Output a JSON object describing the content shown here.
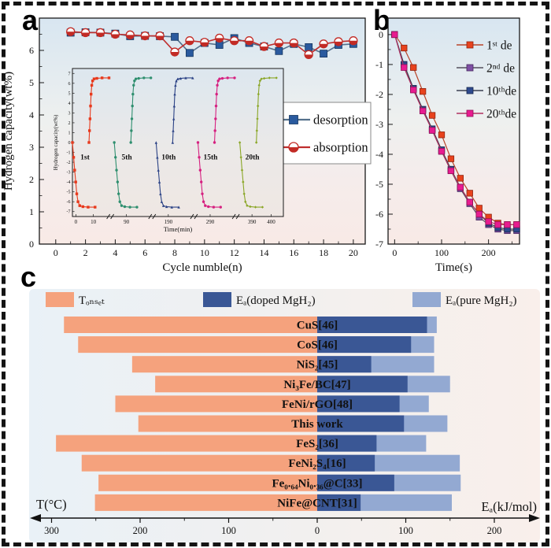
{
  "figure": {
    "panel_labels": {
      "a": "a",
      "b": "b",
      "c": "c"
    }
  },
  "chart_data": [
    {
      "id": "cycling",
      "type": "line",
      "panel": "a",
      "xlabel": "Cycle numble(n)",
      "ylabel": "Hydrogen capacity(wt%)",
      "xlim": [
        -1.1,
        20.8
      ],
      "ylim": [
        0,
        7
      ],
      "xticks": [
        0,
        2,
        4,
        6,
        8,
        10,
        12,
        14,
        16,
        18,
        20
      ],
      "yticks": [
        0,
        1,
        2,
        3,
        4,
        5,
        6,
        7
      ],
      "legend_position": "right-middle",
      "x": [
        1,
        2,
        3,
        4,
        5,
        6,
        7,
        8,
        9,
        10,
        11,
        12,
        13,
        14,
        15,
        16,
        17,
        18,
        19,
        20
      ],
      "series": [
        {
          "name": "desorption",
          "marker": "square",
          "color": "#2a5a9e",
          "edge": "#16365f",
          "line_color": "#54708c",
          "values": [
            6.55,
            6.56,
            6.55,
            6.52,
            6.44,
            6.45,
            6.44,
            6.42,
            5.92,
            6.23,
            6.17,
            6.38,
            6.23,
            6.12,
            5.98,
            6.2,
            6.1,
            5.9,
            6.17,
            6.2
          ]
        },
        {
          "name": "absorption",
          "marker": "half-circle",
          "color": "#c22b25",
          "edge": "#8f1d18",
          "line_color": "#bf2e2e",
          "values": [
            6.58,
            6.55,
            6.55,
            6.5,
            6.48,
            6.45,
            6.45,
            5.95,
            6.3,
            6.25,
            6.38,
            6.3,
            6.3,
            6.12,
            6.23,
            6.23,
            5.87,
            6.2,
            6.27,
            6.3
          ]
        }
      ]
    },
    {
      "id": "inset_kinetics",
      "type": "line-broken-axis",
      "panel": "a-inset",
      "xlabel": "Time(min)",
      "ylabel": "Hydrogen capacity(wt%)",
      "yticks": [
        7,
        6,
        5,
        4,
        3,
        2,
        1,
        0,
        -1,
        -2,
        -3,
        -4,
        -5,
        -6,
        -7
      ],
      "xticks": [
        {
          "label": "0",
          "du": 2
        },
        {
          "label": "10",
          "du": 12
        },
        {
          "label": "90",
          "du": 31
        },
        {
          "label": "190",
          "du": 55
        },
        {
          "label": "290",
          "du": 79
        },
        {
          "label": "390",
          "du": 103
        },
        {
          "label": "400",
          "du": 114
        }
      ],
      "breaks_du": [
        21.5,
        45.5,
        69.5,
        93.5
      ],
      "group_offsets": [
        0,
        24,
        48,
        72,
        96
      ],
      "groups": [
        {
          "label": "1st",
          "color": "#e8391c",
          "marker": "square"
        },
        {
          "label": "5th",
          "color": "#2f8f6f",
          "marker": "circle"
        },
        {
          "label": "10th",
          "color": "#2c4386",
          "marker": "triangle"
        },
        {
          "label": "15th",
          "color": "#d62180",
          "marker": "circle"
        },
        {
          "label": "20th",
          "color": "#8aa626",
          "marker": "diamond"
        }
      ],
      "desorption_shape": [
        [
          0,
          0
        ],
        [
          0.7,
          -1.5
        ],
        [
          1.3,
          -2.8
        ],
        [
          1.9,
          -4.0
        ],
        [
          2.5,
          -5.2
        ],
        [
          3.2,
          -6.0
        ],
        [
          4.2,
          -6.4
        ],
        [
          6,
          -6.5
        ],
        [
          9,
          -6.55
        ],
        [
          13,
          -6.55
        ]
      ],
      "absorption_shape": [
        [
          9.5,
          0
        ],
        [
          9.8,
          1.2
        ],
        [
          10.1,
          2.4
        ],
        [
          10.4,
          3.7
        ],
        [
          10.7,
          4.9
        ],
        [
          11.1,
          5.8
        ],
        [
          11.6,
          6.25
        ],
        [
          12.4,
          6.45
        ],
        [
          14,
          6.5
        ],
        [
          17,
          6.55
        ],
        [
          21,
          6.55
        ]
      ]
    },
    {
      "id": "desorption_kinetics",
      "type": "line",
      "panel": "b",
      "xlabel": "Time(s)",
      "xlim": [
        -14,
        266
      ],
      "ylim": [
        -7,
        0.55
      ],
      "xticks": [
        0,
        100,
        200
      ],
      "xminor": [
        50,
        150,
        250
      ],
      "yticks": [
        0,
        -1,
        -2,
        -3,
        -4,
        -5,
        -6,
        -7
      ],
      "legend_position": "top-right",
      "x": [
        0,
        20,
        40,
        60,
        80,
        100,
        120,
        140,
        160,
        180,
        200,
        220,
        240,
        260
      ],
      "series": [
        {
          "name": "1ˢᵗ de",
          "marker": "square",
          "color": "#e8421d",
          "edge": "#8f2410",
          "line_color": "#b8442a",
          "values": [
            0,
            -0.45,
            -1.1,
            -1.9,
            -2.7,
            -3.35,
            -4.15,
            -4.8,
            -5.3,
            -5.8,
            -6.1,
            -6.3,
            -6.35,
            -6.35
          ]
        },
        {
          "name": "2ⁿᵈ de",
          "marker": "square",
          "color": "#7e4fa4",
          "edge": "#46295e",
          "line_color": "#55505e",
          "values": [
            0,
            -1.0,
            -1.8,
            -2.5,
            -3.2,
            -3.9,
            -4.55,
            -5.15,
            -5.65,
            -6.1,
            -6.35,
            -6.5,
            -6.55,
            -6.55
          ]
        },
        {
          "name": "10ᵗʰde",
          "marker": "square",
          "color": "#2f4a8e",
          "edge": "#17264c",
          "line_color": "#3a3f50",
          "values": [
            0,
            -1.0,
            -1.8,
            -2.5,
            -3.15,
            -3.85,
            -4.5,
            -5.1,
            -5.6,
            -6.0,
            -6.3,
            -6.45,
            -6.5,
            -6.5
          ]
        },
        {
          "name": "20ᵗʰde",
          "marker": "square",
          "color": "#e81c90",
          "edge": "#8f0f57",
          "line_color": "#b03060",
          "values": [
            0,
            -1.1,
            -1.85,
            -2.55,
            -3.2,
            -3.9,
            -4.55,
            -5.1,
            -5.6,
            -6.0,
            -6.25,
            -6.35,
            -6.35,
            -6.35
          ]
        }
      ]
    },
    {
      "id": "comparison",
      "type": "diverging-bar",
      "panel": "c",
      "left_axis_label": "T(°C)",
      "right_axis_label": "Eₐ(kJ/mol)",
      "left_ticks": [
        300,
        200,
        100,
        0
      ],
      "right_ticks": [
        100,
        200
      ],
      "left_minor": [
        250,
        150,
        50
      ],
      "right_minor": [
        50,
        150
      ],
      "legend": [
        {
          "label": "Tₒₙₛₑₜ",
          "color": "#f5a27d"
        },
        {
          "label": "Eₐ(doped MgH₂)",
          "color": "#3a5795"
        },
        {
          "label": "Eₐ(pure MgH₂)",
          "color": "#93a9d2"
        }
      ],
      "rows": [
        {
          "label": "CuS[46]",
          "t_onset": 286,
          "ea_doped": 124,
          "ea_pure": 135,
          "label_color": "#ffffff"
        },
        {
          "label": "CoS[46]",
          "t_onset": 270,
          "ea_doped": 106,
          "ea_pure": 132,
          "label_color": "#ffffff"
        },
        {
          "label": "NiS₂[45]",
          "t_onset": 209,
          "ea_doped": 61,
          "ea_pure": 132,
          "label_color": "#ffffff"
        },
        {
          "label": "Ni₃Fe/BC[47]",
          "t_onset": 183,
          "ea_doped": 102,
          "ea_pure": 150,
          "label_color": "#ffffff"
        },
        {
          "label": "FeNi/rGO[48]",
          "t_onset": 228,
          "ea_doped": 93,
          "ea_pure": 126,
          "label_color": "#ffffff"
        },
        {
          "label": "This work",
          "t_onset": 202,
          "ea_doped": 98,
          "ea_pure": 147,
          "label_color": "#a31515"
        },
        {
          "label": "FeS₂[36]",
          "t_onset": 295,
          "ea_doped": 67,
          "ea_pure": 123,
          "label_color": "#ffffff"
        },
        {
          "label": "FeNi₂S₄[16]",
          "t_onset": 266,
          "ea_doped": 65,
          "ea_pure": 161,
          "label_color": "#ffffff"
        },
        {
          "label": "Fe₀.₆₄Ni₀.₃₆@C[33]",
          "t_onset": 247,
          "ea_doped": 87,
          "ea_pure": 162,
          "label_color": "#ffffff"
        },
        {
          "label": "NiFe@CNT[31]",
          "t_onset": 251,
          "ea_doped": 49,
          "ea_pure": 152,
          "label_color": "#ffffff"
        }
      ]
    }
  ]
}
